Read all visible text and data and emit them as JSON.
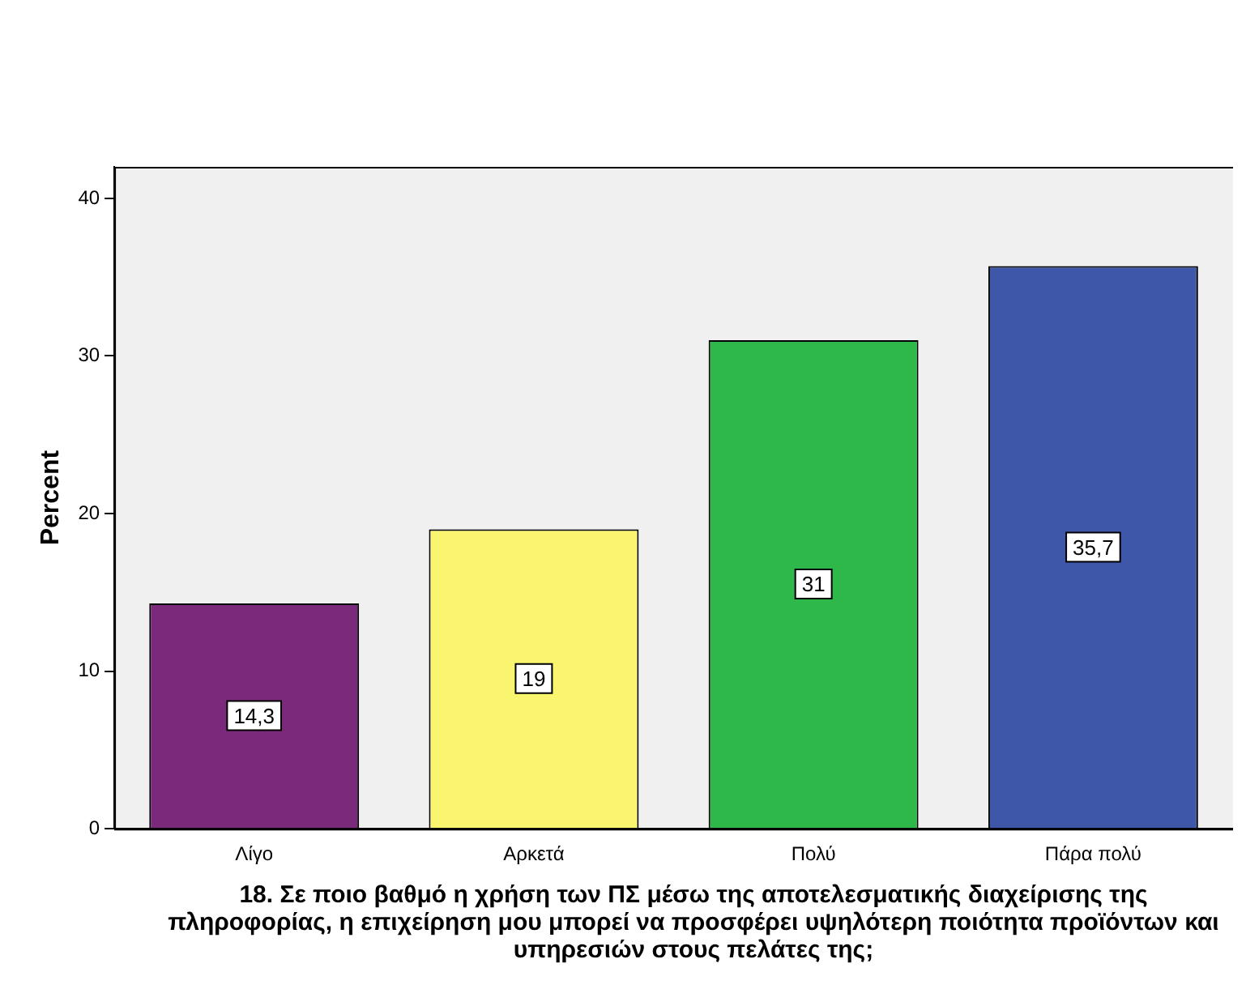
{
  "chart_data": {
    "type": "bar",
    "categories": [
      "Λίγο",
      "Αρκετά",
      "Πολύ",
      "Πάρα πολύ"
    ],
    "values": [
      14.3,
      19,
      31,
      35.7
    ],
    "value_labels": [
      "14,3",
      "19",
      "31",
      "35,7"
    ],
    "colors": [
      "#7b2a7b",
      "#f9f56e",
      "#2eb84a",
      "#3f57a8"
    ],
    "ylabel": "Percent",
    "xlabel": "18.  Σε ποιο βαθμό η χρήση των ΠΣ μέσω της αποτελεσματικής διαχείρισης της πληροφορίας, η επιχείρηση μου μπορεί να προσφέρει υψηλότερη ποιότητα προϊόντων και υπηρεσιών στους πελάτες της;",
    "ylim": [
      0,
      42
    ],
    "yticks": [
      0,
      10,
      20,
      30,
      40
    ],
    "grid": false,
    "legend": false
  }
}
